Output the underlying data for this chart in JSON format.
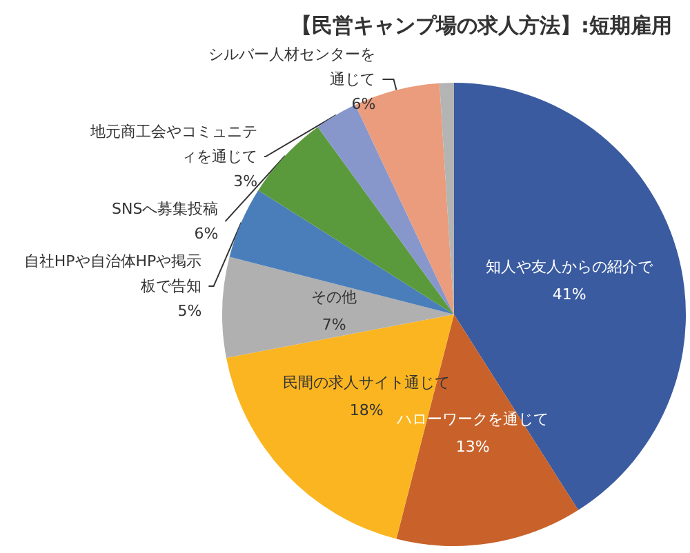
{
  "chart_data": {
    "type": "pie",
    "title": "【民営キャンプ場の求人方法】:短期雇用",
    "categories": [
      "知人や友人からの紹介で",
      "ハローワークを通じて",
      "民間の求人サイト通じて",
      "その他",
      "自社HPや自治体HPや掲示板で告知",
      "SNSへ募集投稿",
      "地元商工会やコミュニティを通じて",
      "シルバー人材センターを通じて",
      null
    ],
    "values": [
      41,
      13,
      18,
      7,
      5,
      6,
      3,
      6,
      1
    ],
    "value_labels": [
      "41%",
      "13%",
      "18%",
      "7%",
      "5%",
      "6%",
      "3%",
      "6%",
      null
    ],
    "colors": [
      "#3a5ba0",
      "#c8622a",
      "#fbb520",
      "#b0b0b0",
      "#4a7ebb",
      "#5b9a3c",
      "#8797cc",
      "#ea9c7d",
      "#b4b4b4"
    ],
    "legend": false
  }
}
